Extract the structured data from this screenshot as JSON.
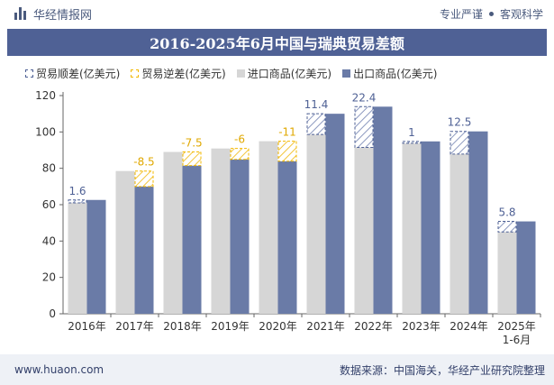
{
  "header": {
    "brand": "华经情报网",
    "tagline_left": "专业严谨",
    "tagline_right": "客观科学"
  },
  "footer": {
    "website": "www.huaon.com",
    "source": "数据来源：中国海关，华经产业研究院整理"
  },
  "colors": {
    "import": "#d6d6d6",
    "export": "#6a7ba7",
    "surplus": "#4f6195",
    "deficit": "#f2b800",
    "title_bg": "#4f6195",
    "label_surplus": "#4f6195",
    "label_deficit": "#e0a800"
  },
  "chart_data": {
    "type": "bar",
    "title": "2016-2025年6月中国与瑞典贸易差额",
    "categories": [
      "2016年",
      "2017年",
      "2018年",
      "2019年",
      "2020年",
      "2021年",
      "2022年",
      "2023年",
      "2024年",
      "2025年\n1-6月"
    ],
    "series": [
      {
        "name": "进口商品(亿美元)",
        "values": [
          61.0,
          78.5,
          89.0,
          90.9,
          94.9,
          98.6,
          91.5,
          93.8,
          87.8,
          45.0
        ]
      },
      {
        "name": "出口商品(亿美元)",
        "values": [
          62.6,
          70.0,
          81.5,
          84.9,
          83.9,
          110.0,
          113.9,
          94.8,
          100.3,
          50.8
        ]
      }
    ],
    "balance": {
      "surplus_name": "贸易顺差(亿美元)",
      "deficit_name": "贸易逆差(亿美元)",
      "values": [
        1.6,
        -8.5,
        -7.5,
        -6,
        -11,
        11.4,
        22.4,
        1,
        12.5,
        5.8
      ],
      "labels": [
        "1.6",
        "-8.5",
        "-7.5",
        "-6",
        "-11",
        "11.4",
        "22.4",
        "1",
        "12.5",
        "5.8"
      ]
    },
    "ylim": [
      0,
      120
    ],
    "yticks": [
      0,
      20,
      40,
      60,
      80,
      100,
      120
    ],
    "xlabel": "",
    "ylabel": "",
    "grid": false,
    "legend_position": "top-left"
  }
}
